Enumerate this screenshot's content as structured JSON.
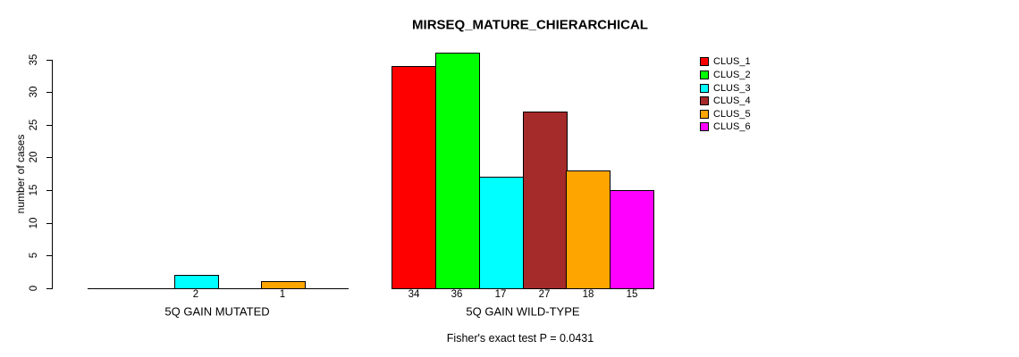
{
  "chart_data": {
    "type": "bar",
    "title": "MIRSEQ_MATURE_CHIERARCHICAL",
    "ylabel": "number of cases",
    "ylim": [
      0,
      35
    ],
    "yticks": [
      0,
      5,
      10,
      15,
      20,
      25,
      30,
      35
    ],
    "grid": false,
    "legend_position": "right-outside",
    "categories": [
      "5Q GAIN MUTATED",
      "5Q GAIN WILD-TYPE"
    ],
    "series": [
      {
        "name": "CLUS_1",
        "color": "#ff0000",
        "values": [
          0,
          34
        ]
      },
      {
        "name": "CLUS_2",
        "color": "#00ff00",
        "values": [
          0,
          36
        ]
      },
      {
        "name": "CLUS_3",
        "color": "#00ffff",
        "values": [
          2,
          17
        ]
      },
      {
        "name": "CLUS_4",
        "color": "#a52a2a",
        "values": [
          0,
          27
        ]
      },
      {
        "name": "CLUS_5",
        "color": "#ffa500",
        "values": [
          1,
          18
        ]
      },
      {
        "name": "CLUS_6",
        "color": "#ff00ff",
        "values": [
          0,
          15
        ]
      }
    ],
    "bar_value_labels": {
      "5Q GAIN MUTATED": [
        null,
        null,
        "2",
        null,
        "1",
        null
      ],
      "5Q GAIN WILD-TYPE": [
        "34",
        "36",
        "17",
        "27",
        "18",
        "15"
      ]
    },
    "footnote": "Fisher's exact test P = 0.0431"
  }
}
